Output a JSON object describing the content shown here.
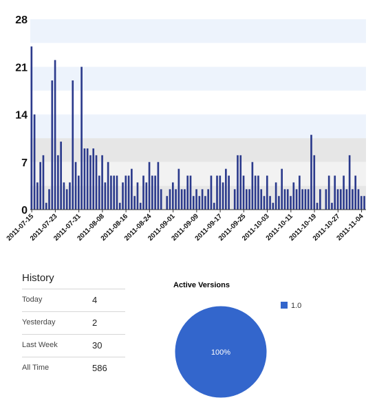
{
  "chart_data": [
    {
      "type": "bar",
      "title": "",
      "xlabel": "",
      "ylabel": "",
      "ylim": [
        0,
        28
      ],
      "y_ticks": [
        "0",
        "7",
        "14",
        "21",
        "28"
      ],
      "x_tick_labels": [
        "2011-07-15",
        "2011-07-23",
        "2011-07-31",
        "2011-08-08",
        "2011-08-16",
        "2011-08-24",
        "2011-09-01",
        "2011-09-09",
        "2011-09-17",
        "2011-09-25",
        "2011-10-03",
        "2011-10-11",
        "2011-10-19",
        "2011-10-27",
        "2011-11-04"
      ],
      "start_date": "2011-07-15",
      "end_date": "2011-11-04",
      "color": "#2b3a8c",
      "values": [
        24,
        14,
        4,
        7,
        8,
        1,
        3,
        19,
        22,
        8,
        10,
        4,
        3,
        4,
        19,
        7,
        5,
        21,
        9,
        9,
        8,
        9,
        8,
        5,
        8,
        4,
        7,
        5,
        5,
        5,
        1,
        4,
        5,
        5,
        6,
        2,
        4,
        1,
        5,
        4,
        7,
        5,
        5,
        7,
        3,
        0,
        2,
        3,
        4,
        3,
        6,
        3,
        3,
        5,
        5,
        2,
        3,
        2,
        3,
        2,
        3,
        5,
        1,
        5,
        5,
        4,
        6,
        5,
        0,
        3,
        8,
        8,
        5,
        3,
        3,
        7,
        5,
        5,
        3,
        2,
        5,
        2,
        1,
        4,
        2,
        6,
        3,
        3,
        2,
        4,
        3,
        5,
        3,
        3,
        3,
        11,
        8,
        1,
        3,
        0,
        3,
        5,
        1,
        5,
        3,
        3,
        5,
        3,
        8,
        3,
        5,
        3,
        2,
        2
      ]
    },
    {
      "type": "pie",
      "title": "Active Versions",
      "labels": [
        "1.0"
      ],
      "values": [
        100
      ],
      "slice_labels": [
        "100%"
      ],
      "colors": [
        "#3366cc"
      ],
      "legend": "right"
    }
  ],
  "history": {
    "title": "History",
    "rows": [
      {
        "label": "Today",
        "value": "4"
      },
      {
        "label": "Yesterday",
        "value": "2"
      },
      {
        "label": "Last Week",
        "value": "30"
      },
      {
        "label": "All Time",
        "value": "586"
      }
    ]
  }
}
